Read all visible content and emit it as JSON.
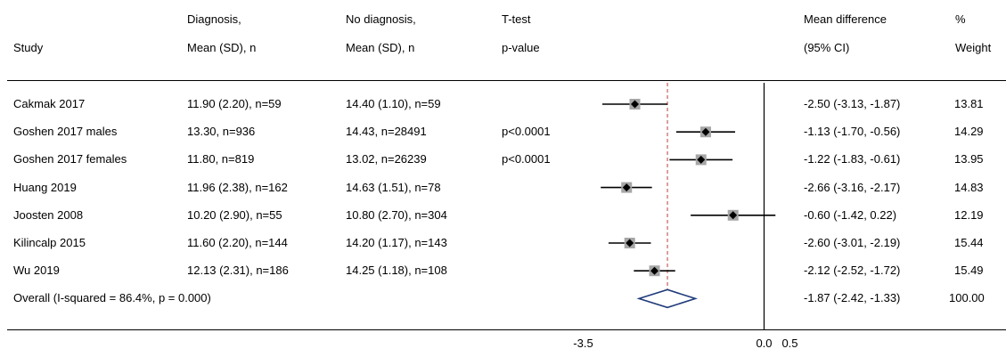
{
  "columns": {
    "study": [
      "",
      "Study"
    ],
    "diagnosis": [
      "Diagnosis,",
      "Mean (SD), n"
    ],
    "no_diagnosis": [
      "No diagnosis,",
      "Mean (SD), n"
    ],
    "ttest": [
      "T-test",
      "p-value"
    ],
    "mean_difference": [
      "Mean difference",
      "(95% CI)"
    ],
    "weight": [
      "%",
      "Weight"
    ]
  },
  "chart_data": {
    "type": "forest",
    "measure": "Mean difference",
    "null_line": 0.0,
    "overall_line": -1.87,
    "x_ticks": [
      "-3.5",
      "0.0",
      "0.5"
    ],
    "x_tick_values": [
      -3.5,
      0.0,
      0.5
    ],
    "rows": [
      {
        "study": "Cakmak 2017",
        "diagnosis": "11.90 (2.20), n=59",
        "no_diagnosis": "14.40 (1.10), n=59",
        "p": "",
        "es": -2.5,
        "lo": -3.13,
        "hi": -1.87,
        "ci_text": "-2.50 (-3.13, -1.87)",
        "weight": "13.81"
      },
      {
        "study": "Goshen 2017 males",
        "diagnosis": "13.30, n=936",
        "no_diagnosis": "14.43, n=28491",
        "p": "p<0.0001",
        "es": -1.13,
        "lo": -1.7,
        "hi": -0.56,
        "ci_text": "-1.13 (-1.70, -0.56)",
        "weight": "14.29"
      },
      {
        "study": "Goshen 2017 females",
        "diagnosis": "11.80, n=819",
        "no_diagnosis": "13.02, n=26239",
        "p": "p<0.0001",
        "es": -1.22,
        "lo": -1.83,
        "hi": -0.61,
        "ci_text": "-1.22 (-1.83, -0.61)",
        "weight": "13.95"
      },
      {
        "study": "Huang 2019",
        "diagnosis": "11.96 (2.38), n=162",
        "no_diagnosis": "14.63 (1.51), n=78",
        "p": "",
        "es": -2.66,
        "lo": -3.16,
        "hi": -2.17,
        "ci_text": "-2.66 (-3.16, -2.17)",
        "weight": "14.83"
      },
      {
        "study": "Joosten 2008",
        "diagnosis": "10.20 (2.90), n=55",
        "no_diagnosis": "10.80 (2.70), n=304",
        "p": "",
        "es": -0.6,
        "lo": -1.42,
        "hi": 0.22,
        "ci_text": "-0.60 (-1.42, 0.22)",
        "weight": "12.19"
      },
      {
        "study": "Kilincalp 2015",
        "diagnosis": "11.60 (2.20), n=144",
        "no_diagnosis": "14.20 (1.17), n=143",
        "p": "",
        "es": -2.6,
        "lo": -3.01,
        "hi": -2.19,
        "ci_text": "-2.60 (-3.01, -2.19)",
        "weight": "15.44"
      },
      {
        "study": "Wu 2019",
        "diagnosis": "12.13 (2.31), n=186",
        "no_diagnosis": "14.25 (1.18), n=108",
        "p": "",
        "es": -2.12,
        "lo": -2.52,
        "hi": -1.72,
        "ci_text": "-2.12 (-2.52, -1.72)",
        "weight": "15.49"
      }
    ],
    "overall": {
      "label": "Overall  (I-squared = 86.4%, p = 0.000)",
      "es": -1.87,
      "lo": -2.42,
      "hi": -1.33,
      "ci_text": "-1.87 (-2.42, -1.33)",
      "weight": "100.00"
    },
    "colors": {
      "box": "#a6a6a6",
      "point": "#000000",
      "overall_line": "#c0504d",
      "diamond": "#1f3a7a"
    }
  }
}
